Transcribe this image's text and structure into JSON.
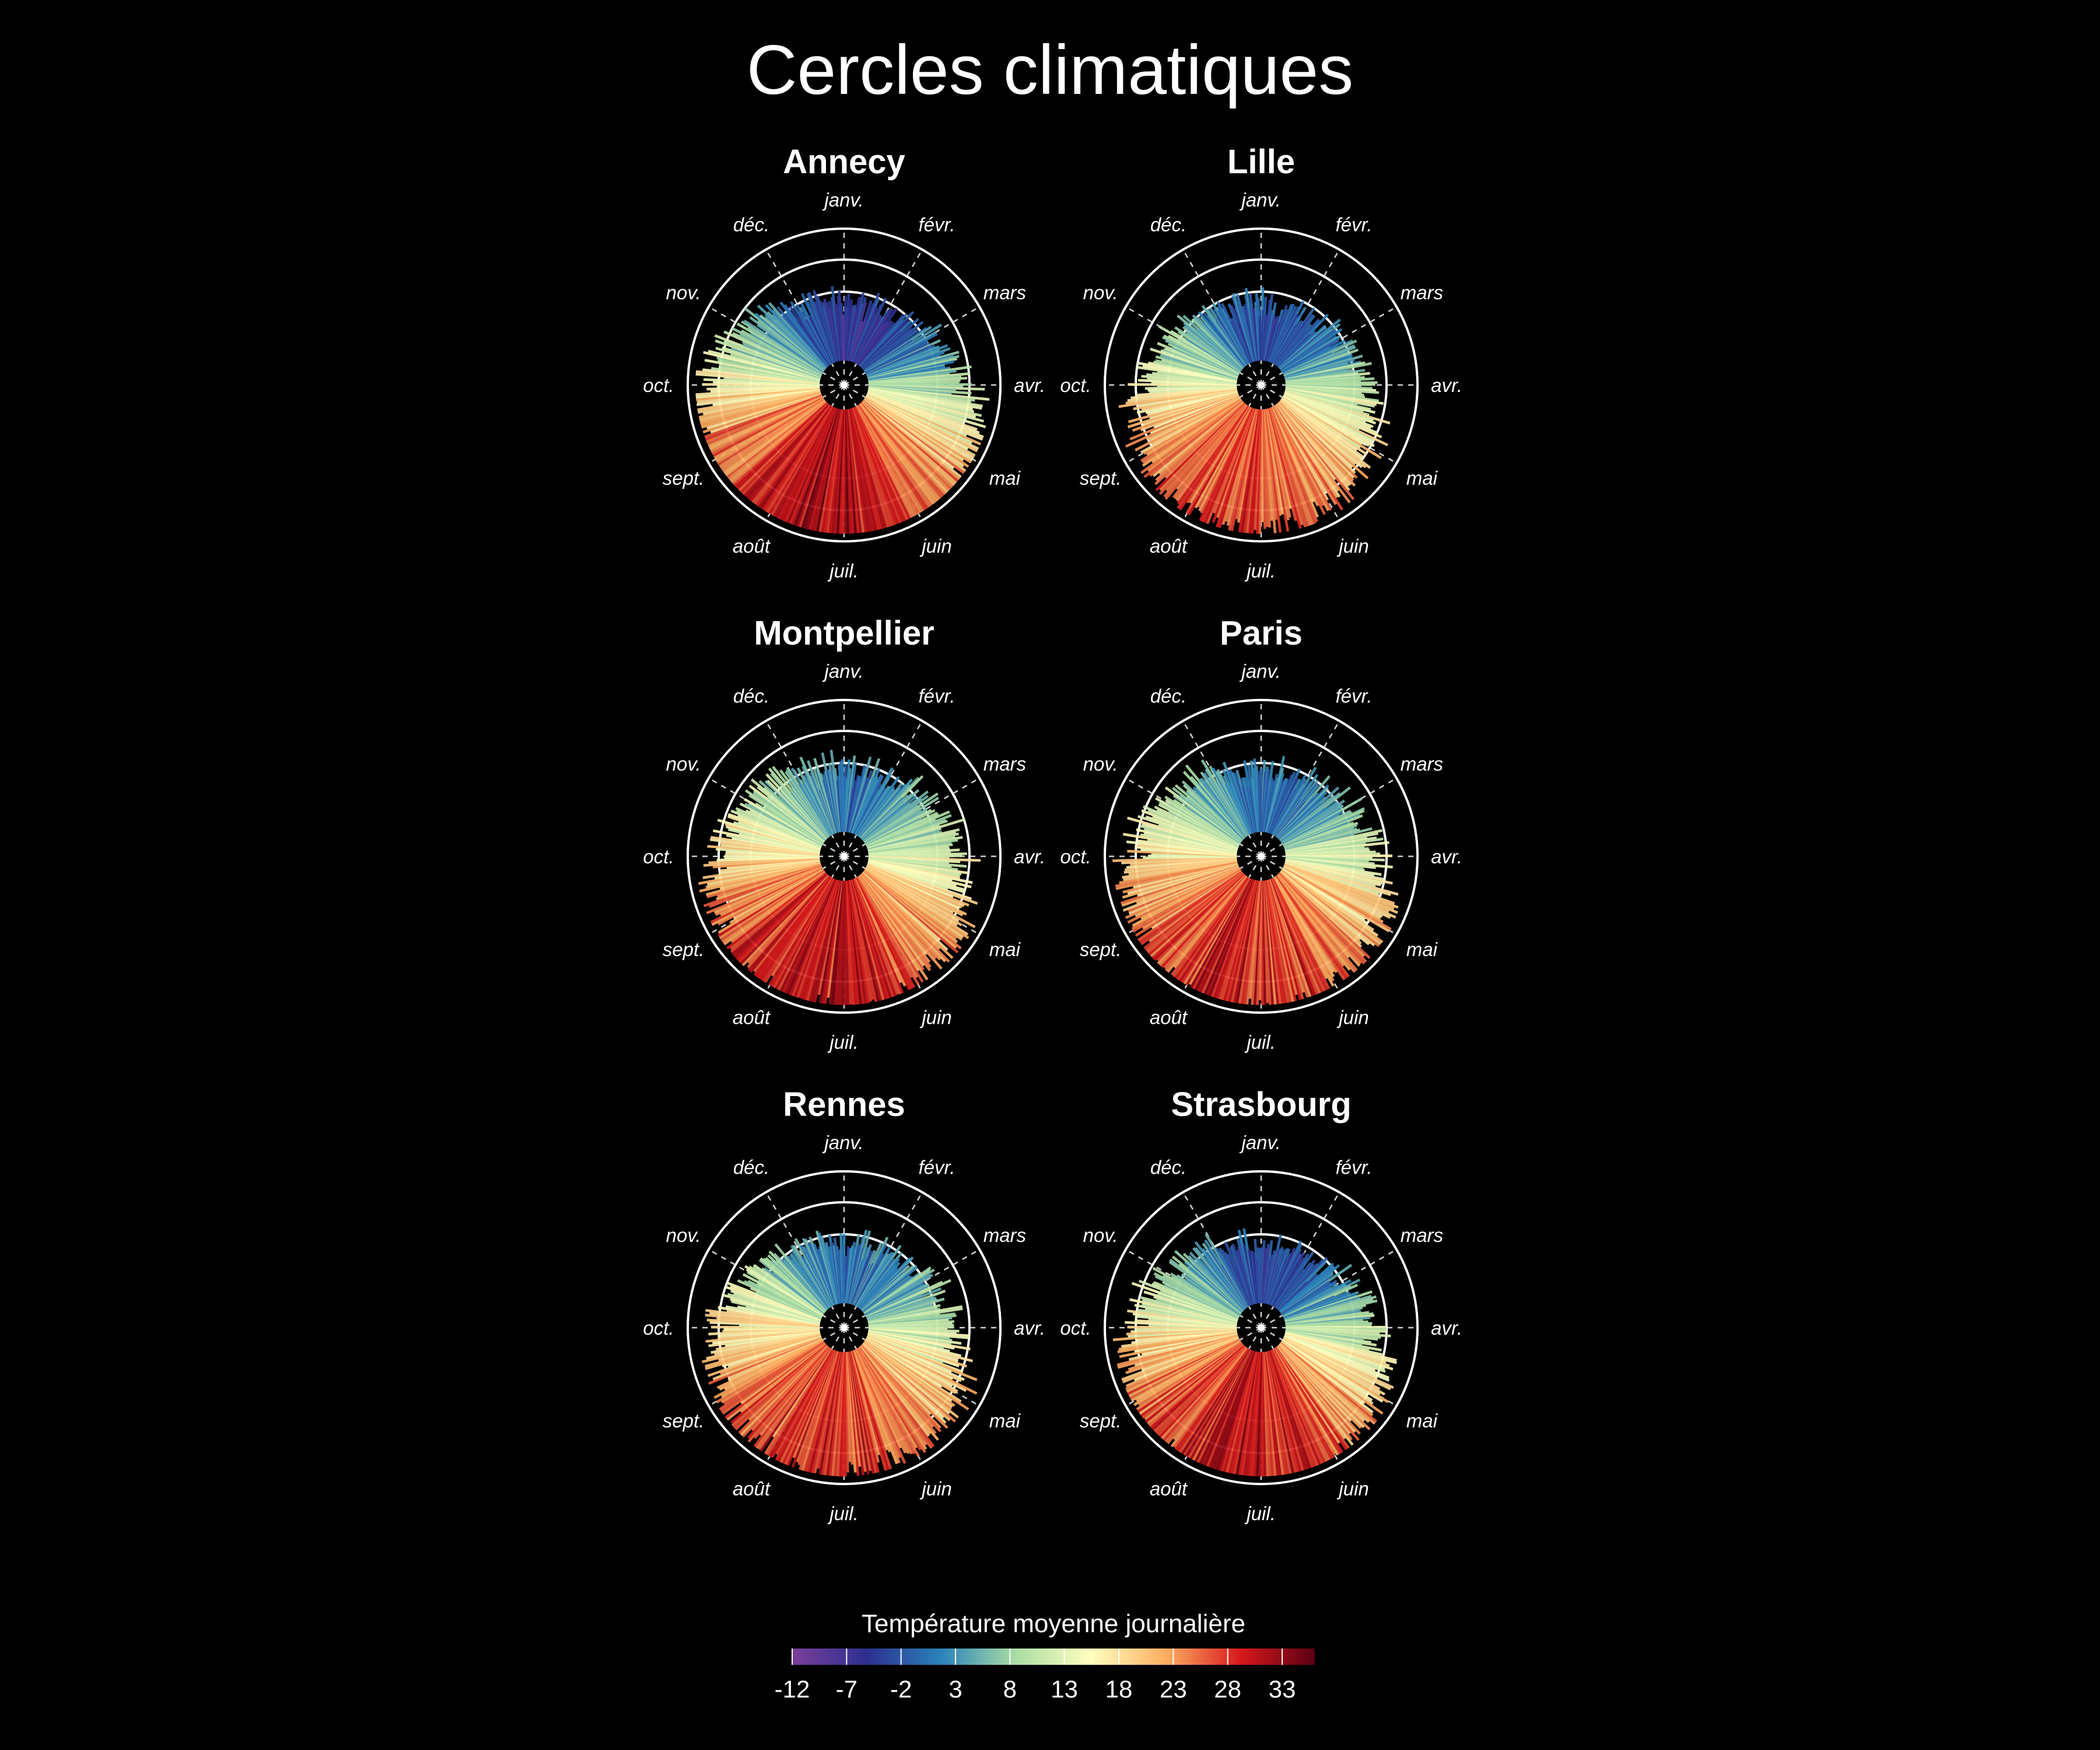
{
  "title": "Cercles climatiques",
  "chart_data": {
    "type": "polar-bar",
    "subplots": [
      {
        "city": "Annecy",
        "vmin": -6,
        "vmax": 31,
        "amp_scale": 1.15,
        "radial_scale": 1.0
      },
      {
        "city": "Lille",
        "vmin": -3,
        "vmax": 27,
        "amp_scale": 0.95,
        "radial_scale": 1.0
      },
      {
        "city": "Montpellier",
        "vmin": 1,
        "vmax": 30,
        "amp_scale": 0.9,
        "radial_scale": 1.15
      },
      {
        "city": "Paris",
        "vmin": 0,
        "vmax": 29,
        "amp_scale": 1.0,
        "radial_scale": 1.1
      },
      {
        "city": "Rennes",
        "vmin": 0,
        "vmax": 28,
        "amp_scale": 1.0,
        "radial_scale": 1.05
      },
      {
        "city": "Strasbourg",
        "vmin": -4,
        "vmax": 30,
        "amp_scale": 1.05,
        "radial_scale": 1.0
      }
    ],
    "months": [
      "janv.",
      "févr.",
      "mars",
      "avr.",
      "mai",
      "juin",
      "juil.",
      "août",
      "sept.",
      "oct.",
      "nov.",
      "déc."
    ],
    "direction": "counterclockwise",
    "start_month_position": "top",
    "rings": 4,
    "grid": true,
    "legend": {
      "title": "Température moyenne journalière",
      "min": -12,
      "max": 36,
      "ticks": [
        -12,
        -7,
        -2,
        3,
        8,
        13,
        18,
        23,
        28,
        33
      ],
      "colormap": "Spectral_r",
      "placement": "bottom-center"
    }
  },
  "colors": {
    "background": "#000000",
    "foreground": "#ffffff",
    "colormap_stops": [
      "#7b3f99",
      "#2c2f8f",
      "#2b83ba",
      "#abdda4",
      "#ffffbf",
      "#fdae61",
      "#d7191c",
      "#5a0013"
    ]
  }
}
